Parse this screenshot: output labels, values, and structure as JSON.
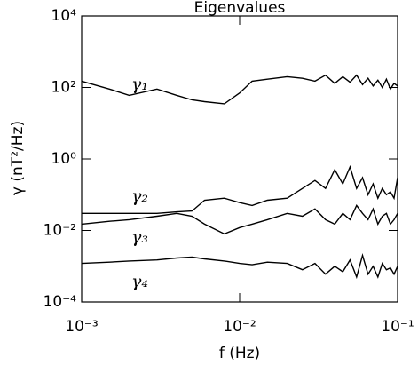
{
  "chart_data": {
    "type": "line",
    "title": "Eigenvalues",
    "x_label": "f (Hz)",
    "y_label": "γ (nT²/Hz)",
    "xscale": "log",
    "yscale": "log",
    "xlim": [
      0.001,
      0.1
    ],
    "xticks": [
      {
        "value": 0.001,
        "label": "10⁻³"
      },
      {
        "value": 0.01,
        "label": "10⁻²"
      },
      {
        "value": 0.1,
        "label": "10⁻¹"
      }
    ],
    "ylim": [
      0.0001,
      10000
    ],
    "yticks": [
      {
        "value": 0.0001,
        "label": "10⁻⁴"
      },
      {
        "value": 0.01,
        "label": "10⁻²"
      },
      {
        "value": 1,
        "label": "10⁰"
      },
      {
        "value": 100,
        "label": "10²"
      },
      {
        "value": 10000,
        "label": "10⁴"
      }
    ],
    "x": [
      0.001,
      0.0015,
      0.002,
      0.003,
      0.004,
      0.005,
      0.006,
      0.008,
      0.01,
      0.012,
      0.015,
      0.02,
      0.025,
      0.03,
      0.035,
      0.04,
      0.045,
      0.05,
      0.055,
      0.06,
      0.065,
      0.07,
      0.075,
      0.08,
      0.085,
      0.09,
      0.095,
      0.1
    ],
    "series": [
      {
        "name": "γ₁",
        "color": "#000000",
        "values": [
          150,
          90,
          60,
          90,
          60,
          45,
          40,
          35,
          70,
          150,
          170,
          200,
          180,
          150,
          220,
          130,
          200,
          140,
          220,
          120,
          180,
          110,
          160,
          100,
          170,
          90,
          130,
          110
        ]
      },
      {
        "name": "γ₂",
        "color": "#000000",
        "values": [
          0.03,
          0.03,
          0.03,
          0.03,
          0.033,
          0.035,
          0.07,
          0.08,
          0.06,
          0.05,
          0.07,
          0.08,
          0.15,
          0.25,
          0.15,
          0.5,
          0.2,
          0.6,
          0.15,
          0.3,
          0.1,
          0.2,
          0.08,
          0.15,
          0.1,
          0.12,
          0.08,
          0.3
        ]
      },
      {
        "name": "γ₃",
        "color": "#000000",
        "values": [
          0.015,
          0.018,
          0.02,
          0.025,
          0.03,
          0.025,
          0.015,
          0.008,
          0.012,
          0.015,
          0.02,
          0.03,
          0.025,
          0.04,
          0.02,
          0.015,
          0.03,
          0.02,
          0.05,
          0.03,
          0.02,
          0.04,
          0.015,
          0.025,
          0.03,
          0.015,
          0.02,
          0.03
        ]
      },
      {
        "name": "γ₄",
        "color": "#000000",
        "values": [
          0.0012,
          0.0013,
          0.0014,
          0.0015,
          0.0017,
          0.0018,
          0.0016,
          0.0014,
          0.0012,
          0.0011,
          0.0013,
          0.0012,
          0.0008,
          0.0012,
          0.0006,
          0.001,
          0.0007,
          0.0015,
          0.0005,
          0.002,
          0.0006,
          0.001,
          0.0005,
          0.0012,
          0.0008,
          0.0009,
          0.0006,
          0.001
        ]
      }
    ]
  }
}
